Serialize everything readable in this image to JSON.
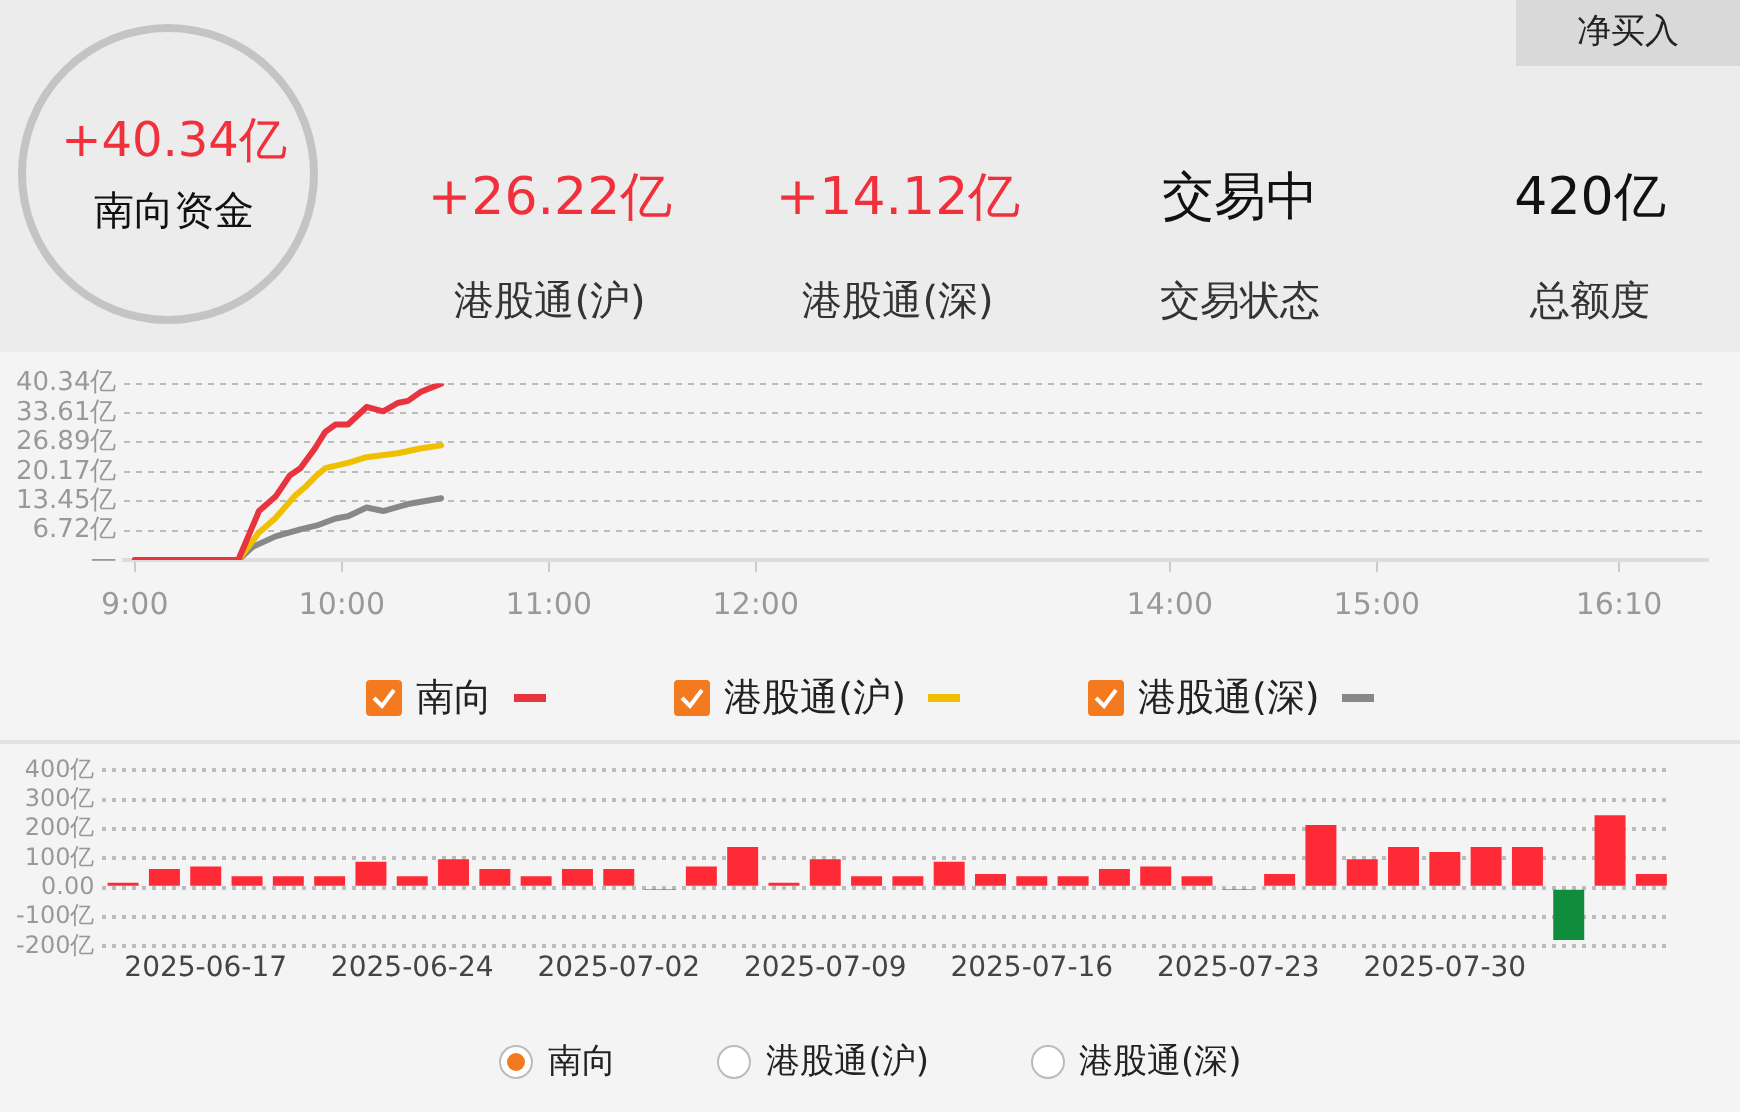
{
  "chart_data": [
    {
      "type": "other",
      "annotations": [
        "净买入",
        "+40.34亿",
        "南向资金",
        "+26.22亿",
        "港股通(沪)",
        "+14.12亿",
        "港股通(深)",
        "交易中",
        "交易状态",
        "420亿",
        "总额度"
      ]
    },
    {
      "type": "line",
      "xlim": [
        8.95,
        16.6
      ],
      "xticks": [
        {
          "value": 9,
          "label": "9:00"
        },
        {
          "value": 10,
          "label": "10:00"
        },
        {
          "value": 11,
          "label": "11:00"
        },
        {
          "value": 12,
          "label": "12:00"
        },
        {
          "value": 14,
          "label": "14:00"
        },
        {
          "value": 15,
          "label": "15:00"
        },
        {
          "value": 16.17,
          "label": "16:10"
        }
      ],
      "ylim": [
        0,
        40.34
      ],
      "yticks": [
        {
          "value": 0,
          "label": "—"
        },
        {
          "value": 6.72,
          "label": "6.72亿"
        },
        {
          "value": 13.45,
          "label": "13.45亿"
        },
        {
          "value": 20.17,
          "label": "20.17亿"
        },
        {
          "value": 26.89,
          "label": "26.89亿"
        },
        {
          "value": 33.61,
          "label": "33.61亿"
        },
        {
          "value": 40.34,
          "label": "40.34亿"
        }
      ],
      "grid": "y",
      "legend": "bottom",
      "marker": "none",
      "line_style": "solid",
      "series": [
        {
          "name": "南向",
          "color": "#e8343f",
          "x": [
            9,
            9.5,
            9.6,
            9.68,
            9.75,
            9.8,
            9.87,
            9.92,
            9.97,
            10.03,
            10.12,
            10.2,
            10.27,
            10.32,
            10.38,
            10.48
          ],
          "values": [
            0,
            0,
            11.2,
            14.5,
            19.4,
            21,
            25.5,
            29.3,
            31,
            31,
            35,
            34,
            35.9,
            36.4,
            38.4,
            40.34
          ]
        },
        {
          "name": "港股通(沪)",
          "color": "#f0c000",
          "x": [
            9,
            9.5,
            9.6,
            9.68,
            9.77,
            9.83,
            9.88,
            9.92,
            10.03,
            10.12,
            10.27,
            10.38,
            10.48
          ],
          "values": [
            0,
            0,
            6.3,
            9.6,
            14.5,
            17,
            19.4,
            21,
            22.2,
            23.5,
            24.4,
            25.5,
            26.22
          ]
        },
        {
          "name": "港股通(深)",
          "color": "#888888",
          "x": [
            9,
            9.5,
            9.57,
            9.68,
            9.8,
            9.88,
            9.97,
            10.03,
            10.12,
            10.2,
            10.32,
            10.48
          ],
          "values": [
            0,
            0,
            3,
            5.4,
            7,
            7.9,
            9.5,
            10,
            12,
            11.2,
            12.8,
            14.12
          ]
        }
      ]
    },
    {
      "type": "bar",
      "categories": [
        null,
        null,
        "2025-06-17",
        null,
        null,
        null,
        null,
        "2025-06-24",
        null,
        null,
        null,
        null,
        "2025-07-02",
        null,
        null,
        null,
        null,
        "2025-07-09",
        null,
        null,
        null,
        null,
        "2025-07-16",
        null,
        null,
        null,
        null,
        "2025-07-23",
        null,
        null,
        null,
        null,
        "2025-07-30",
        null,
        null,
        null,
        null,
        null
      ],
      "ylim": [
        -200,
        400
      ],
      "yticks": [
        {
          "value": -200,
          "label": "-200亿"
        },
        {
          "value": -100,
          "label": "-100亿"
        },
        {
          "value": 0,
          "label": "0.00"
        },
        {
          "value": 100,
          "label": "100亿"
        },
        {
          "value": 200,
          "label": "200亿"
        },
        {
          "value": 300,
          "label": "300亿"
        },
        {
          "value": 400,
          "label": "400亿"
        }
      ],
      "grid": "y",
      "legend": "bottom",
      "annotations": [
        "港股通(沪)",
        "港股通(深)"
      ],
      "series": [
        {
          "name": "南向",
          "values": [
            17,
            64,
            72,
            39,
            39,
            39,
            89,
            39,
            97,
            64,
            39,
            64,
            64,
            -5,
            72,
            139,
            17,
            97,
            39,
            39,
            89,
            47,
            39,
            39,
            64,
            72,
            39,
            -5,
            47,
            214,
            97,
            139,
            122,
            139,
            139,
            -178,
            247,
            47
          ],
          "colors": [
            "#fe2a36",
            "#fe2a36",
            "#fe2a36",
            "#fe2a36",
            "#fe2a36",
            "#fe2a36",
            "#fe2a36",
            "#fe2a36",
            "#fe2a36",
            "#fe2a36",
            "#fe2a36",
            "#fe2a36",
            "#fe2a36",
            "#0f8c3c",
            "#fe2a36",
            "#fe2a36",
            "#fe2a36",
            "#fe2a36",
            "#fe2a36",
            "#fe2a36",
            "#fe2a36",
            "#fe2a36",
            "#fe2a36",
            "#fe2a36",
            "#fe2a36",
            "#fe2a36",
            "#fe2a36",
            "#0f8c3c",
            "#fe2a36",
            "#fe2a36",
            "#fe2a36",
            "#fe2a36",
            "#fe2a36",
            "#fe2a36",
            "#fe2a36",
            "#0f8c3c",
            "#fe2a36",
            "#fe2a36"
          ]
        }
      ]
    }
  ]
}
